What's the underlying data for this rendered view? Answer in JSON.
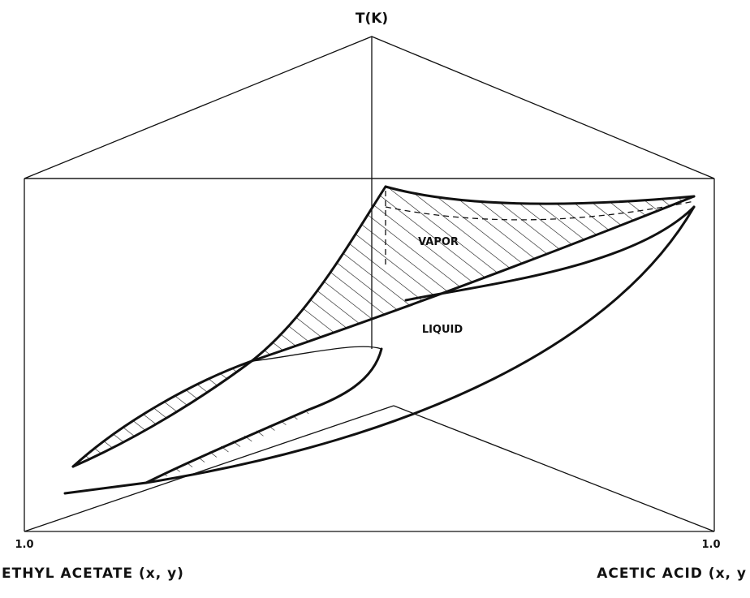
{
  "axis_label_top": "T(K)",
  "region_labels": {
    "vapor": "VAPOR",
    "liquid": "LIQUID"
  },
  "corner_labels": {
    "left": "1.0",
    "right": "1.0"
  },
  "axis_label_left": "ETHYL ACETATE (x, y)",
  "axis_label_right": "ACETIC ACID (x, y"
}
